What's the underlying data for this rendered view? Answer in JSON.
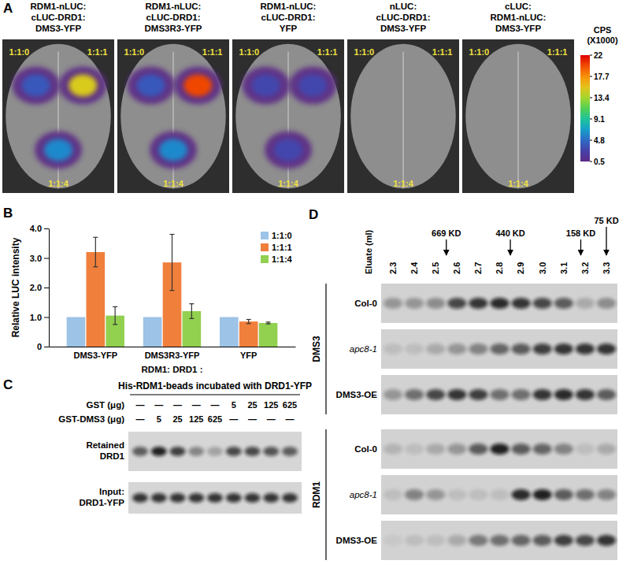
{
  "panel_letters": [
    "A",
    "B",
    "C",
    "D"
  ],
  "panel_a": {
    "leaves": [
      {
        "label": [
          "RDM1-nLUC:",
          "cLUC-DRD1:",
          "DMS3-YFP"
        ],
        "signal": [
          4,
          15,
          6
        ]
      },
      {
        "label": [
          "RDM1-nLUC:",
          "cLUC-DRD1:",
          "DMS3R3-YFP"
        ],
        "signal": [
          4,
          20,
          6
        ]
      },
      {
        "label": [
          "RDM1-nLUC:",
          "cLUC-DRD1:",
          "YFP"
        ],
        "signal": [
          3,
          3,
          3
        ]
      },
      {
        "label": [
          "nLUC:",
          "cLUC-DRD1:",
          "DMS3-YFP"
        ],
        "signal": [
          null,
          null,
          null
        ]
      },
      {
        "label": [
          "cLUC:",
          "RDM1-nLUC:",
          "DMS3-YFP"
        ],
        "signal": [
          null,
          null,
          null
        ]
      }
    ],
    "ratios": [
      "1:1:0",
      "1:1:1",
      "1:1:4"
    ],
    "colorbar": {
      "label": [
        "CPS",
        "(X1000)"
      ],
      "range": [
        0.5,
        22
      ],
      "ticks": [
        22,
        17.7,
        13.4,
        9.1,
        4.8,
        0.5
      ]
    }
  },
  "chart_data": {
    "type": "bar",
    "categories": [
      "DMS3-YFP",
      "DMS3R3-YFP",
      "YFP"
    ],
    "series": [
      {
        "name": "1:1:0",
        "color": "#9dc3e6",
        "values": [
          1,
          1,
          1
        ],
        "errors": [
          null,
          null,
          null
        ]
      },
      {
        "name": "1:1:1",
        "color": "#f07f3c",
        "values": [
          3.2,
          2.85,
          0.85
        ],
        "errors": [
          0.5,
          0.95,
          0.07
        ]
      },
      {
        "name": "1:1:4",
        "color": "#92d050",
        "values": [
          1.05,
          1.2,
          0.8
        ],
        "errors": [
          0.3,
          0.25,
          0.03
        ]
      }
    ],
    "y_label": "Relative LUC intensity",
    "x_label": "RDM1: DRD1 :",
    "ylim": [
      0,
      4
    ],
    "yticks": [
      0,
      {
        "value": 1,
        "label": "1.0"
      },
      {
        "value": 2,
        "label": "2.0"
      },
      {
        "value": 3,
        "label": "3.0"
      },
      {
        "value": 4,
        "label": "4.0"
      }
    ],
    "legend": "top-right"
  },
  "panel_c": {
    "title": "His-RDM1-beads incubated with DRD1-YFP",
    "rows": [
      {
        "label": "GST (μg)",
        "cells": [
          "—",
          "—",
          "—",
          "—",
          "—",
          "5",
          "25",
          "125",
          "625"
        ]
      },
      {
        "label": "GST-DMS3 (μg)",
        "cells": [
          "—",
          "5",
          "25",
          "125",
          "625",
          "—",
          "—",
          "—",
          "—"
        ]
      }
    ],
    "blots": [
      {
        "label": [
          "Retained",
          "DRD1"
        ],
        "bands": [
          0.6,
          0.9,
          0.75,
          0.4,
          0.25,
          0.7,
          0.7,
          0.65,
          0.6
        ]
      },
      {
        "label": [
          "Input:",
          "DRD1-YFP"
        ],
        "bands": [
          0.8,
          0.8,
          0.8,
          0.8,
          0.8,
          0.8,
          0.8,
          0.8,
          0.8
        ]
      }
    ]
  },
  "panel_d": {
    "axis_label": "Eluate (ml)",
    "fractions": [
      2.3,
      2.4,
      2.5,
      2.6,
      2.7,
      2.8,
      2.9,
      {
        "value": 3,
        "label": "3.0"
      },
      3.1,
      3.2,
      3.3
    ],
    "markers": [
      {
        "label": "669 KD",
        "position": 2.55
      },
      {
        "label": "440 KD",
        "position": 2.85
      },
      {
        "label": "158 KD",
        "position": 3.18
      },
      {
        "label": "75 KD",
        "position": 3.3
      }
    ],
    "groups": [
      {
        "label": "DMS3",
        "rows": [
          {
            "label": "Col-0",
            "bands": [
              0.3,
              0.3,
              0.35,
              0.7,
              0.8,
              0.85,
              0.8,
              0.7,
              0.6,
              0.2,
              0.35
            ]
          },
          {
            "label": "apc8-1",
            "bands": [
              0.1,
              0.1,
              0.2,
              0.3,
              0.4,
              0.55,
              0.6,
              0.75,
              0.8,
              0.8,
              0.8
            ]
          },
          {
            "label": "DMS3-OE",
            "bands": [
              0.3,
              0.5,
              0.7,
              0.8,
              0.75,
              0.5,
              0.5,
              0.8,
              0.85,
              0.8,
              0.6
            ]
          }
        ]
      },
      {
        "label": "RDM1",
        "rows": [
          {
            "label": "Col-0",
            "bands": [
              0.15,
              0.1,
              0.2,
              0.3,
              0.6,
              0.9,
              0.6,
              0.55,
              0.4,
              0.1,
              0.2
            ]
          },
          {
            "label": "apc8-1",
            "bands": [
              0.1,
              0.4,
              0.3,
              0.1,
              0.1,
              0.1,
              0.85,
              0.9,
              0.6,
              0.5,
              0.4
            ]
          },
          {
            "label": "DMS3-OE",
            "bands": [
              0.05,
              0.1,
              0.1,
              0.2,
              0.45,
              0.5,
              0.55,
              0.6,
              0.75,
              0.7,
              0.8
            ]
          }
        ]
      }
    ]
  }
}
